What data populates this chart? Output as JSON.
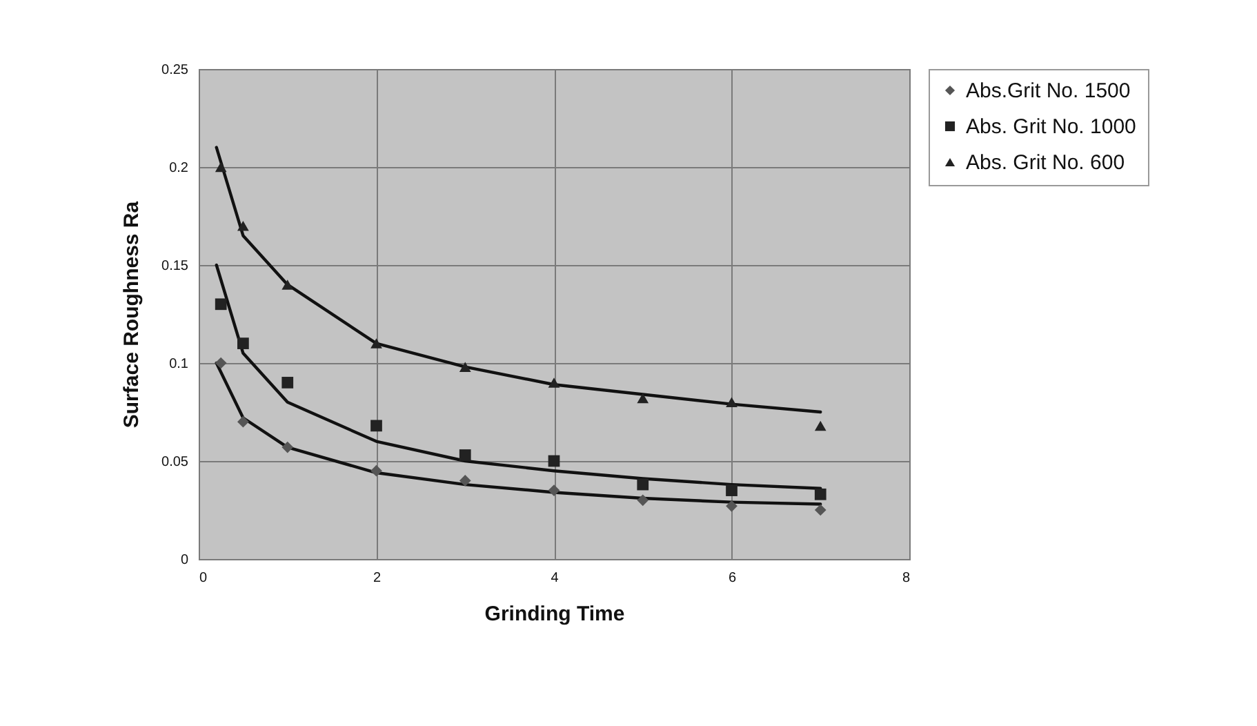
{
  "chart_data": {
    "type": "scatter",
    "xlabel": "Grinding Time",
    "ylabel": "Surface Roughness Ra",
    "x": [
      0.25,
      0.5,
      1,
      2,
      3,
      4,
      5,
      6,
      7
    ],
    "series": [
      {
        "name": "Abs.Grit No. 1500",
        "color": "#555555",
        "marker": "diamond",
        "values": [
          0.1,
          0.07,
          0.057,
          0.045,
          0.04,
          0.035,
          0.03,
          0.027,
          0.025
        ]
      },
      {
        "name": "Abs. Grit No. 1000",
        "color": "#222222",
        "marker": "square",
        "values": [
          0.13,
          0.11,
          0.09,
          0.068,
          0.053,
          0.05,
          0.038,
          0.035,
          0.033
        ]
      },
      {
        "name": "Abs. Grit No. 600",
        "color": "#222222",
        "marker": "triangle",
        "values": [
          0.2,
          0.17,
          0.14,
          0.11,
          0.098,
          0.09,
          0.082,
          0.08,
          0.068
        ]
      },
      {
        "type": "line",
        "color": "#111111",
        "marker": "none",
        "x": [
          0.2,
          0.5,
          1,
          2,
          3,
          4,
          5,
          6,
          7
        ],
        "values": [
          0.1,
          0.072,
          0.057,
          0.044,
          0.038,
          0.034,
          0.031,
          0.029,
          0.028
        ]
      },
      {
        "type": "line",
        "color": "#111111",
        "marker": "none",
        "x": [
          0.2,
          0.5,
          1,
          2,
          3,
          4,
          5,
          6,
          7
        ],
        "values": [
          0.15,
          0.105,
          0.08,
          0.06,
          0.05,
          0.045,
          0.041,
          0.038,
          0.036
        ]
      },
      {
        "type": "line",
        "color": "#111111",
        "marker": "none",
        "x": [
          0.2,
          0.5,
          1,
          2,
          3,
          4,
          5,
          6,
          7
        ],
        "values": [
          0.21,
          0.165,
          0.14,
          0.11,
          0.098,
          0.089,
          0.084,
          0.079,
          0.075
        ]
      }
    ],
    "xlim": [
      0,
      8
    ],
    "xticks": [
      0,
      2,
      4,
      6,
      8
    ],
    "ylim": [
      0,
      0.25
    ],
    "yticks": [
      0,
      0.05,
      0.1,
      0.15,
      0.2,
      0.25
    ],
    "grid": true,
    "legend": "right"
  }
}
